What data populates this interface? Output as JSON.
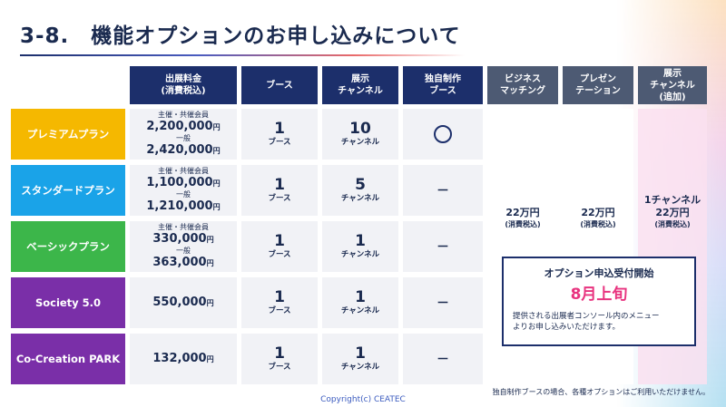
{
  "title": "3-8.　機能オプションのお申し込みについて",
  "headers": {
    "fee": "出展料金\n(消費税込)",
    "booth": "ブース",
    "channel": "展示\nチャンネル",
    "original": "独自制作\nブース",
    "business": "ビジネス\nマッチング",
    "presentation": "プレゼン\nテーション",
    "extra_channel": "展示\nチャンネル\n(追加)"
  },
  "plans": [
    {
      "name": "プレミアムプラン",
      "color": "#f5b800",
      "member_label": "主催・共催会員",
      "member_price": "2,200,000",
      "general_label": "一般",
      "general_price": "2,420,000",
      "price": "",
      "price_unit": "円",
      "booth": "1",
      "booth_unit": "ブース",
      "channel": "10",
      "channel_unit": "チャンネル",
      "original": "circle"
    },
    {
      "name": "スタンダードプラン",
      "color": "#1aa3e8",
      "member_label": "主催・共催会員",
      "member_price": "1,100,000",
      "general_label": "一般",
      "general_price": "1,210,000",
      "price": "",
      "price_unit": "円",
      "booth": "1",
      "booth_unit": "ブース",
      "channel": "5",
      "channel_unit": "チャンネル",
      "original": "－"
    },
    {
      "name": "ベーシックプラン",
      "color": "#3cb64a",
      "member_label": "主催・共催会員",
      "member_price": "330,000",
      "general_label": "一般",
      "general_price": "363,000",
      "price": "",
      "price_unit": "円",
      "booth": "1",
      "booth_unit": "ブース",
      "channel": "1",
      "channel_unit": "チャンネル",
      "original": "－"
    },
    {
      "name": "Society 5.0",
      "color": "#7a2fa8",
      "member_label": "",
      "member_price": "",
      "general_label": "",
      "general_price": "",
      "price": "550,000",
      "price_unit": "円",
      "booth": "1",
      "booth_unit": "ブース",
      "channel": "1",
      "channel_unit": "チャンネル",
      "original": "－"
    },
    {
      "name": "Co-Creation PARK",
      "color": "#7a2fa8",
      "member_label": "",
      "member_price": "",
      "general_label": "",
      "general_price": "",
      "price": "132,000",
      "price_unit": "円",
      "booth": "1",
      "booth_unit": "ブース",
      "channel": "1",
      "channel_unit": "チャンネル",
      "original": "－"
    }
  ],
  "options": {
    "business": {
      "price": "22万円",
      "tax": "(消費税込)"
    },
    "presentation": {
      "price": "22万円",
      "tax": "(消費税込)"
    },
    "extra_channel": {
      "qty": "1チャンネル",
      "price": "22万円",
      "tax": "(消費税込)"
    }
  },
  "notice": {
    "title": "オプション申込受付開始",
    "date": "8月上旬",
    "body": "提供される出展者コンソール内のメニュー\nよりお申し込みいただけます。",
    "date_color": "#e8337f"
  },
  "footnote": "独自制作ブースの場合、各種オプションはご利用いただけません。",
  "copyright": "Copyright(c) CEATEC"
}
